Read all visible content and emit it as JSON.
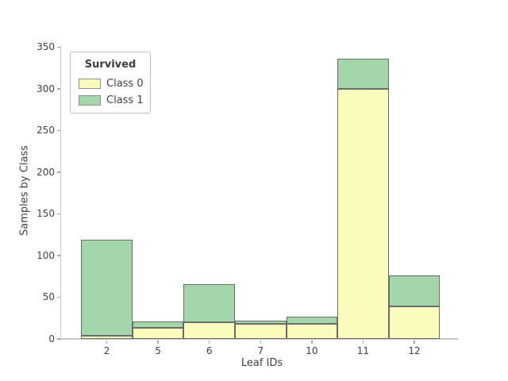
{
  "chart_data": {
    "type": "bar",
    "stacked": true,
    "title": "",
    "xlabel": "Leaf IDs",
    "ylabel": "Samples by Class",
    "categories": [
      "2",
      "5",
      "6",
      "7",
      "10",
      "11",
      "12"
    ],
    "series": [
      {
        "name": "Class 0",
        "color": "#FBFBBC",
        "values": [
          4,
          13,
          20,
          18,
          18,
          300,
          39
        ]
      },
      {
        "name": "Class 1",
        "color": "#A3D7AB",
        "values": [
          115,
          8,
          46,
          4,
          9,
          36,
          37
        ]
      }
    ],
    "ylim": [
      0,
      350
    ],
    "yticks": [
      0,
      50,
      100,
      150,
      200,
      250,
      300,
      350
    ],
    "grid": false,
    "legend_title": "Survived",
    "legend_position": "upper left",
    "bar_edge_color": "#6B6B6B"
  },
  "axes": {
    "xlabel": "Leaf IDs",
    "ylabel": "Samples by Class",
    "xticklabels": [
      "2",
      "5",
      "6",
      "7",
      "10",
      "11",
      "12"
    ],
    "yticklabels": [
      "0",
      "50",
      "100",
      "150",
      "200",
      "250",
      "300",
      "350"
    ]
  },
  "legend": {
    "title": "Survived",
    "entries": [
      {
        "label": "Class 0",
        "color": "#FBFBBC"
      },
      {
        "label": "Class 1",
        "color": "#A3D7AB"
      }
    ]
  },
  "colors": {
    "class0_fill": "#FBFBBC",
    "class1_fill": "#A3D7AB",
    "bar_edge": "#6B6B6B",
    "spine": "#C9C9C9",
    "tick": "#A9A9A9",
    "text": "#414141",
    "background": "#FFFFFF"
  }
}
